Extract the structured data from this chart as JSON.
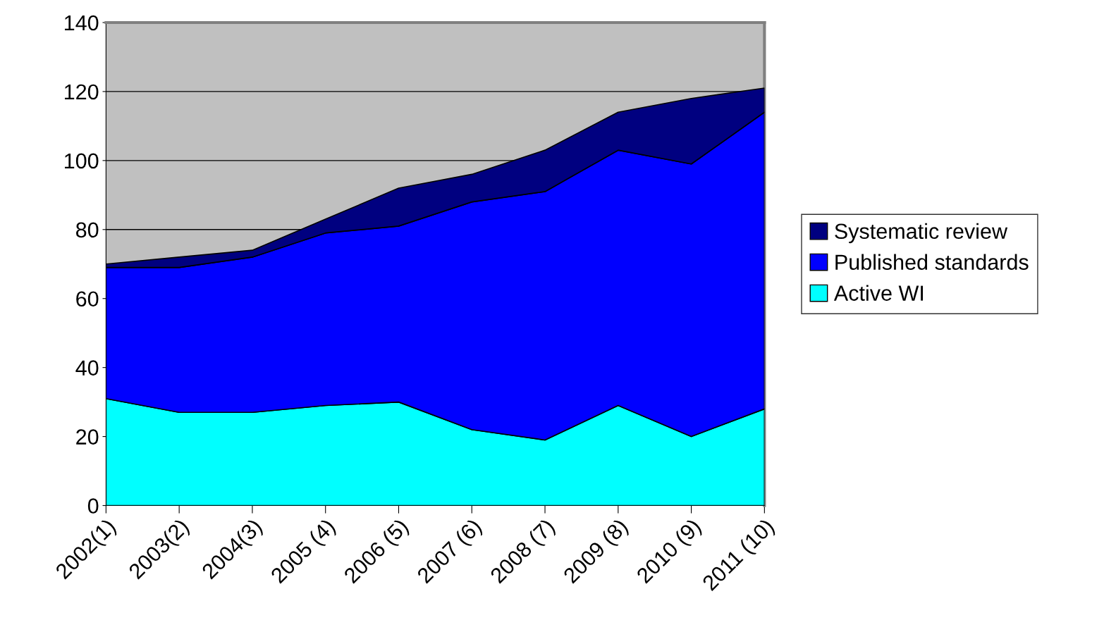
{
  "chart_data": {
    "type": "area",
    "stacked": true,
    "categories": [
      "2002(1)",
      "2003(2)",
      "2004(3)",
      "2005 (4)",
      "2006 (5)",
      "2007 (6)",
      "2008 (7)",
      "2009 (8)",
      "2010 (9)",
      "2011 (10)"
    ],
    "series": [
      {
        "name": "Active WI",
        "color": "#00ffff",
        "values": [
          31,
          27,
          27,
          29,
          30,
          22,
          19,
          29,
          20,
          28
        ]
      },
      {
        "name": "Published standards",
        "color": "#0000ff",
        "values": [
          38,
          42,
          45,
          50,
          51,
          66,
          72,
          74,
          79,
          86
        ]
      },
      {
        "name": "Systematic review",
        "color": "#000080",
        "values": [
          1,
          3,
          2,
          4,
          11,
          8,
          12,
          11,
          19,
          7
        ]
      }
    ],
    "ylim": [
      0,
      140
    ],
    "yticks": [
      0,
      20,
      40,
      60,
      80,
      100,
      120,
      140
    ],
    "grid": "y",
    "legend": "right"
  }
}
